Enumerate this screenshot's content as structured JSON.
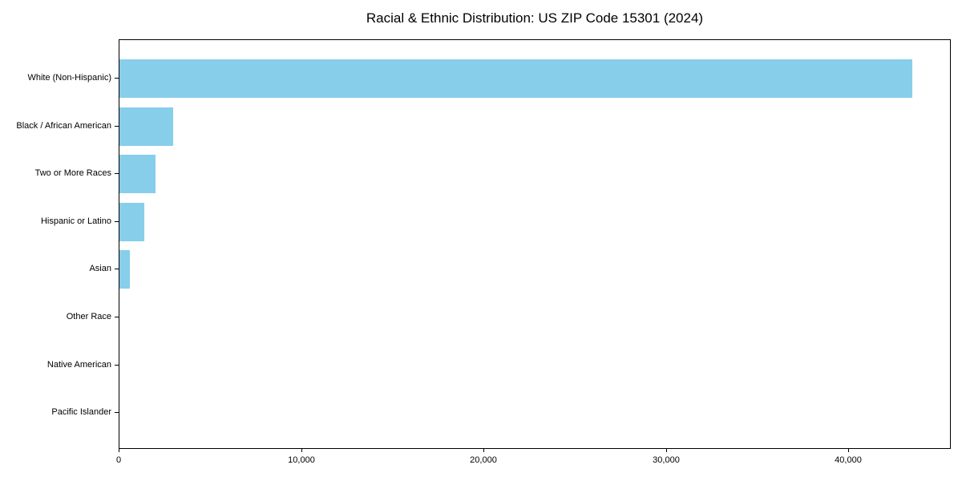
{
  "chart_data": {
    "type": "bar",
    "orientation": "horizontal",
    "title": "Racial & Ethnic Distribution: US ZIP Code 15301 (2024)",
    "categories": [
      "White (Non-Hispanic)",
      "Black / African American",
      "Two or More Races",
      "Hispanic or Latino",
      "Asian",
      "Other Race",
      "Native American",
      "Pacific Islander"
    ],
    "values": [
      43450,
      2960,
      1980,
      1370,
      550,
      0,
      0,
      0
    ],
    "xlabel": "",
    "ylabel": "",
    "xlim": [
      0,
      45620
    ],
    "x_tick_values": [
      0,
      10000,
      20000,
      30000,
      40000
    ],
    "x_tick_labels": [
      "0",
      "10,000",
      "20,000",
      "30,000",
      "40,000"
    ],
    "grid": false,
    "legend": null,
    "bar_color": "#87CEEB",
    "background_color": "#FFFFFF",
    "spine_color": "#000000"
  }
}
